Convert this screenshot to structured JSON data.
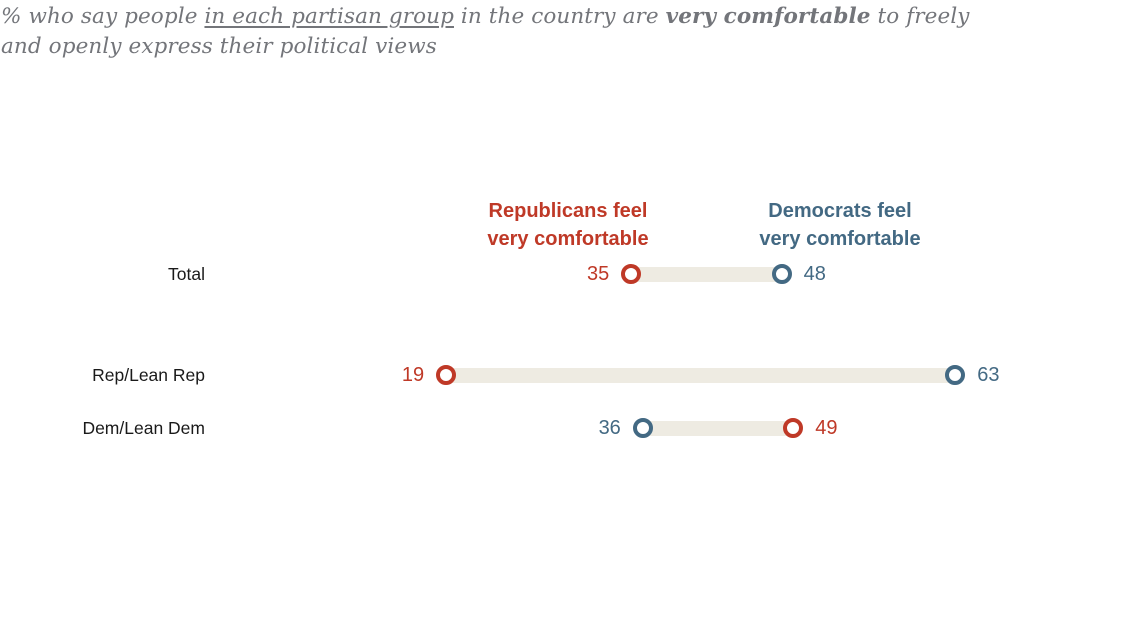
{
  "title": {
    "line1": {
      "pre": "% who say people ",
      "underlined": "in each partisan group",
      "mid": " in the country are ",
      "bold": "very comfortable",
      "post": " to freely"
    },
    "line2": "and openly express their political views"
  },
  "legend": {
    "rep": {
      "line1": "Republicans feel",
      "line2": "very comfortable"
    },
    "dem": {
      "line1": "Democrats feel",
      "line2": "very comfortable"
    }
  },
  "colors": {
    "rep": "#bf3927",
    "dem": "#436983",
    "bar": "#eeebe2",
    "title_text": "#73757a",
    "row_label": "#1a1a1a"
  },
  "chart_data": {
    "type": "dumbbell",
    "title": "% who say people in each partisan group in the country are very comfortable to freely and openly express their political views",
    "categories": [
      "Total",
      "Rep/Lean Rep",
      "Dem/Lean Dem"
    ],
    "series": [
      {
        "name": "Republicans feel very comfortable",
        "values": [
          35,
          19,
          49
        ]
      },
      {
        "name": "Democrats feel very comfortable",
        "values": [
          48,
          63,
          36
        ]
      }
    ],
    "xlim": [
      0,
      100
    ],
    "legend_position": "top",
    "grid": false,
    "rows": [
      {
        "label": "Total",
        "points": [
          {
            "party": "rep",
            "value": 35
          },
          {
            "party": "dem",
            "value": 48
          }
        ]
      },
      {
        "label": "Rep/Lean Rep",
        "points": [
          {
            "party": "rep",
            "value": 19
          },
          {
            "party": "dem",
            "value": 63
          }
        ]
      },
      {
        "label": "Dem/Lean Dem",
        "points": [
          {
            "party": "dem",
            "value": 36
          },
          {
            "party": "rep",
            "value": 49
          }
        ]
      }
    ]
  }
}
